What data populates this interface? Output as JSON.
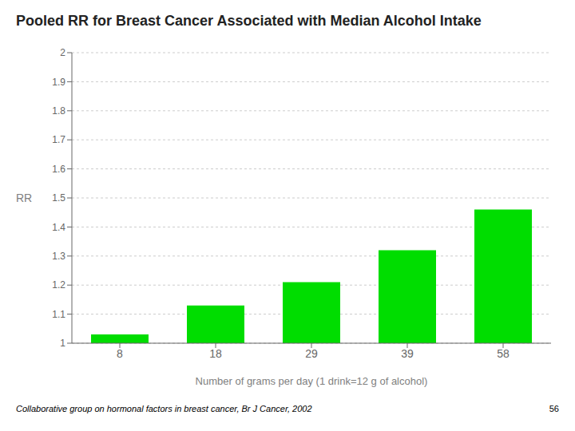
{
  "chart_data": {
    "type": "bar",
    "title": "Pooled RR for Breast Cancer Associated with Median Alcohol Intake",
    "categories": [
      "8",
      "18",
      "29",
      "39",
      "58"
    ],
    "values": [
      1.03,
      1.13,
      1.21,
      1.32,
      1.46
    ],
    "color": "#00dd00",
    "xlabel": "Number of grams per day  (1 drink=12 g of alcohol)",
    "ylabel": "RR",
    "ylim": [
      1.0,
      2.0
    ],
    "yticks": [
      1.0,
      1.1,
      1.2,
      1.3,
      1.4,
      1.5,
      1.6,
      1.7,
      1.8,
      1.9,
      2.0
    ],
    "grid": true,
    "annotations": [
      "Collaborative group on hormonal factors in breast cancer, Br J Cancer, 2002",
      "56"
    ]
  }
}
